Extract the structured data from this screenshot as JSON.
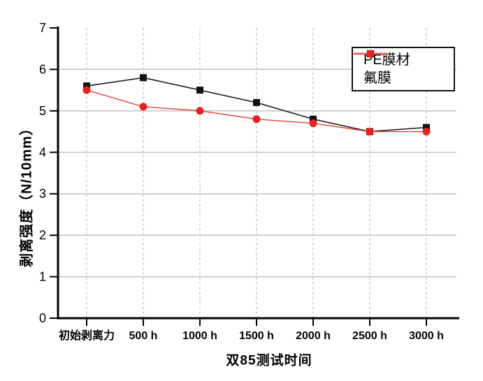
{
  "chart_data": {
    "type": "line",
    "title": "",
    "xlabel": "双85测试时间",
    "ylabel": "剥离强度（N/10mm）",
    "categories": [
      "初始剥离力",
      "500 h",
      "1000 h",
      "1500 h",
      "2000 h",
      "2500 h",
      "3000 h"
    ],
    "series": [
      {
        "name": "PE膜材",
        "marker": "square",
        "marker_color": "#111111",
        "line_color": "#1a1a1a",
        "legend_line_color": "#4d4d4d",
        "values": [
          5.6,
          5.8,
          5.5,
          5.2,
          4.8,
          4.5,
          4.6
        ]
      },
      {
        "name": "氟膜",
        "marker": "circle",
        "marker_color": "#e6211e",
        "legend_line_color": "#ea6458",
        "line_color": "#e0453a",
        "values": [
          5.5,
          5.1,
          5.0,
          4.8,
          4.7,
          4.5,
          4.5
        ]
      }
    ],
    "ylim": [
      0,
      7
    ],
    "yticks": [
      0,
      1,
      2,
      3,
      4,
      5,
      6,
      7
    ],
    "grid": {
      "horizontal": "solid",
      "vertical": "dashed",
      "h_color": "#c0c0c0",
      "v_color": "#c8c8c8"
    },
    "axis_color": "#000000",
    "legend_position": "top-right"
  }
}
